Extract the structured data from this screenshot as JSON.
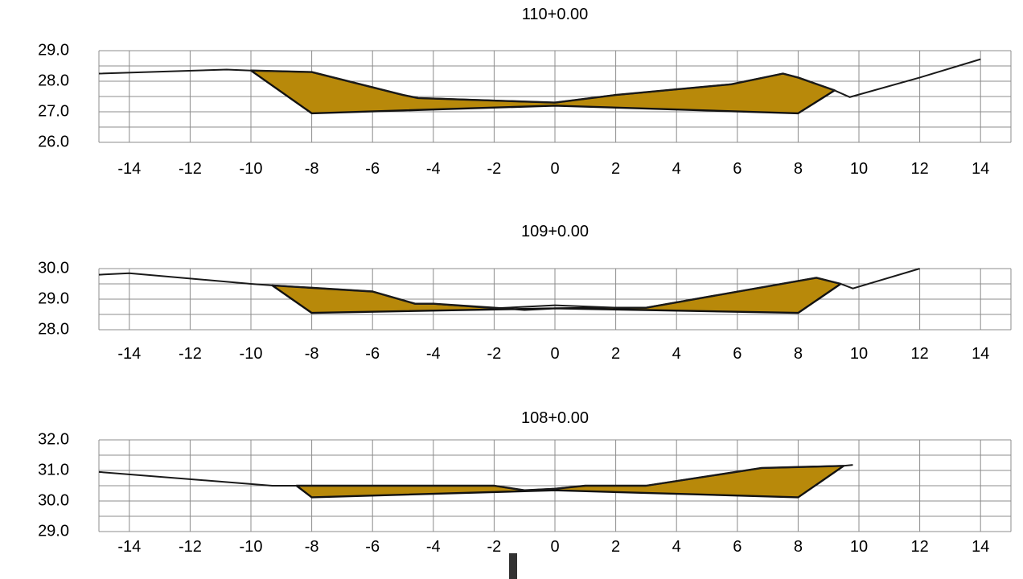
{
  "colors": {
    "cut_fill": "#b8890a",
    "grid": "#8c8c8c",
    "ground_line": "#1a1a1a",
    "background": "#ffffff"
  },
  "chart_data": [
    {
      "type": "area",
      "title": "110+0.00",
      "xlim": [
        -15,
        15
      ],
      "ylim": [
        26,
        29
      ],
      "x_ticks": [
        -14,
        -12,
        -10,
        -8,
        -6,
        -4,
        -2,
        0,
        2,
        4,
        6,
        8,
        10,
        12,
        14
      ],
      "x_tick_labels": [
        "-14",
        "-12",
        "-10",
        "-8",
        "-6",
        "-4",
        "-2",
        "0",
        "2",
        "4",
        "6",
        "8",
        "10",
        "12",
        "14"
      ],
      "y_ticks": [
        29,
        28,
        27,
        26
      ],
      "y_tick_labels": [
        "29.0",
        "28.0",
        "27.0",
        "26.0"
      ],
      "grid": true,
      "series": [
        {
          "role": "ground",
          "x": [
            -15,
            -10.8,
            -10,
            -8,
            -5,
            -4.5,
            0,
            2,
            5.8,
            7.5,
            8,
            9.2,
            9.7,
            12,
            14
          ],
          "y": [
            28.25,
            28.38,
            28.35,
            28.3,
            27.55,
            27.45,
            27.3,
            27.55,
            27.9,
            28.25,
            28.12,
            27.7,
            27.48,
            28.12,
            28.72
          ]
        },
        {
          "role": "cut-fill-area",
          "x": [
            -10,
            -8,
            -5,
            -4.5,
            0,
            2,
            5.8,
            7.5,
            8,
            9.2,
            8,
            0,
            -8
          ],
          "y": [
            28.35,
            28.3,
            27.55,
            27.45,
            27.3,
            27.55,
            27.9,
            28.25,
            28.12,
            27.7,
            26.95,
            27.2,
            26.95
          ]
        }
      ]
    },
    {
      "type": "area",
      "title": "109+0.00",
      "xlim": [
        -15,
        15
      ],
      "ylim": [
        28,
        30
      ],
      "x_ticks": [
        -14,
        -12,
        -10,
        -8,
        -6,
        -4,
        -2,
        0,
        2,
        4,
        6,
        8,
        10,
        12,
        14
      ],
      "x_tick_labels": [
        "-14",
        "-12",
        "-10",
        "-8",
        "-6",
        "-4",
        "-2",
        "0",
        "2",
        "4",
        "6",
        "8",
        "10",
        "12",
        "14"
      ],
      "y_ticks": [
        30,
        29,
        28
      ],
      "y_tick_labels": [
        "30.0",
        "29.0",
        "28.0"
      ],
      "grid": true,
      "series": [
        {
          "role": "ground",
          "x": [
            -15,
            -14,
            -10,
            -9.3,
            -6,
            -4.6,
            -4,
            -2,
            0,
            2,
            3,
            8.6,
            9.4,
            9.8,
            12
          ],
          "y": [
            29.8,
            29.85,
            29.5,
            29.45,
            29.25,
            28.85,
            28.85,
            28.7,
            28.8,
            28.72,
            28.72,
            29.7,
            29.5,
            29.35,
            30
          ]
        },
        {
          "role": "cut-fill-area",
          "x": [
            -9.3,
            -6,
            -4.6,
            -4,
            -2,
            -1,
            0,
            2,
            3,
            8.6,
            9.4,
            8,
            0,
            -8
          ],
          "y": [
            29.45,
            29.25,
            28.85,
            28.85,
            28.72,
            28.65,
            28.7,
            28.72,
            28.72,
            29.7,
            29.5,
            28.55,
            28.7,
            28.55
          ]
        }
      ]
    },
    {
      "type": "area",
      "title": "108+0.00",
      "xlim": [
        -15,
        15
      ],
      "ylim": [
        29,
        32
      ],
      "x_ticks": [
        -14,
        -12,
        -10,
        -8,
        -6,
        -4,
        -2,
        0,
        2,
        4,
        6,
        8,
        10,
        12,
        14
      ],
      "x_tick_labels": [
        "-14",
        "-12",
        "-10",
        "-8",
        "-6",
        "-4",
        "-2",
        "0",
        "2",
        "4",
        "6",
        "8",
        "10",
        "12",
        "14"
      ],
      "y_ticks": [
        32,
        31,
        30,
        29
      ],
      "y_tick_labels": [
        "32.0",
        "31.0",
        "30.0",
        "29.0"
      ],
      "grid": true,
      "series": [
        {
          "role": "ground",
          "x": [
            -15,
            -9.3,
            -8.5,
            -2,
            -1,
            0,
            1,
            3,
            6.8,
            9.5,
            9.8
          ],
          "y": [
            30.95,
            30.5,
            30.5,
            30.5,
            30.35,
            30.4,
            30.5,
            30.5,
            31.08,
            31.15,
            31.18
          ]
        },
        {
          "role": "cut-fill-area",
          "x": [
            -8.5,
            -2,
            -1,
            0,
            1,
            3,
            6.8,
            9.5,
            8,
            0,
            -8
          ],
          "y": [
            30.5,
            30.5,
            30.35,
            30.4,
            30.5,
            30.5,
            31.08,
            31.15,
            30.12,
            30.35,
            30.12
          ]
        }
      ]
    }
  ]
}
